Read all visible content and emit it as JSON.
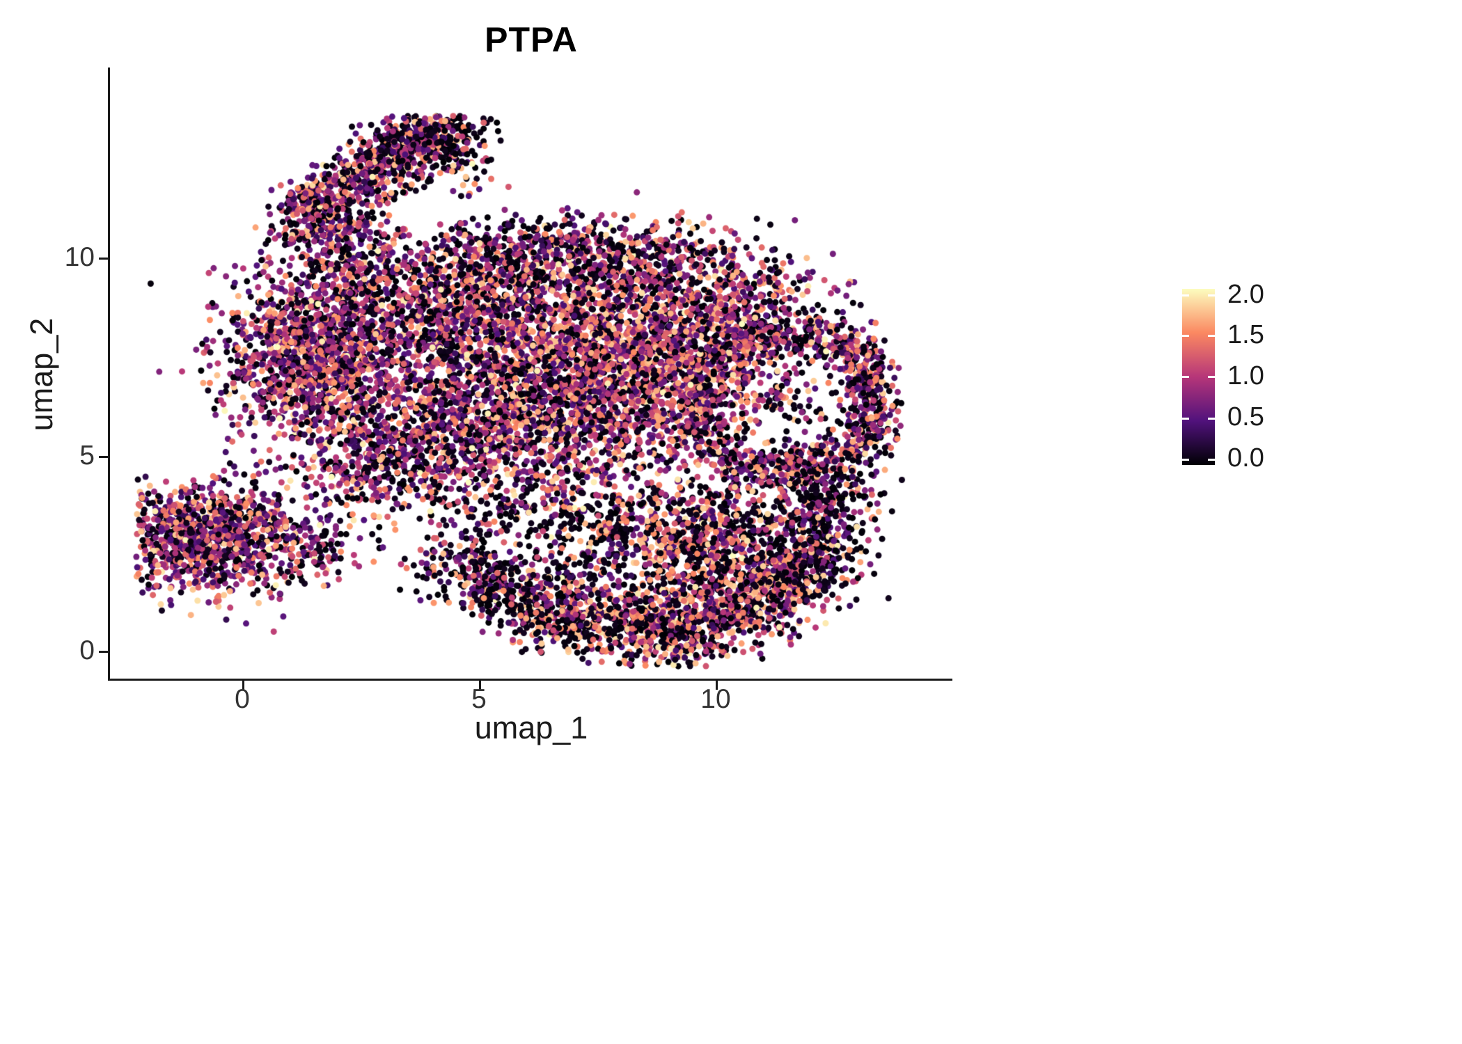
{
  "title": "PTPA",
  "axes": {
    "x_label": "umap_1",
    "y_label": "umap_2",
    "x_tick_labels": [
      "0",
      "5",
      "10"
    ],
    "y_tick_labels": [
      "10",
      "5",
      "0"
    ]
  },
  "legend": {
    "tick_labels": [
      "2.0",
      "1.5",
      "1.0",
      "0.5",
      "0.0"
    ]
  },
  "chart_data": {
    "type": "scatter",
    "title": "PTPA",
    "xlabel": "umap_1",
    "ylabel": "umap_2",
    "xlim": [
      -2.8,
      15.0
    ],
    "ylim": [
      -0.7,
      14.8
    ],
    "x_ticks": [
      0,
      5,
      10
    ],
    "y_ticks": [
      0,
      5,
      10
    ],
    "grid": false,
    "legend_position": "right",
    "point_radius_px": 4.5,
    "color_scale": {
      "palette": "magma",
      "domain": [
        0,
        2
      ],
      "legend_ticks": [
        2.0,
        1.5,
        1.0,
        0.5,
        0.0
      ],
      "stops": [
        {
          "t": 0.0,
          "color": "#000004"
        },
        {
          "t": 0.25,
          "color": "#51127C"
        },
        {
          "t": 0.5,
          "color": "#B63679"
        },
        {
          "t": 0.75,
          "color": "#FB8861"
        },
        {
          "t": 1.0,
          "color": "#FCFDBF"
        }
      ]
    },
    "value_bands": [
      [
        0,
        0.12
      ],
      [
        0.3,
        0.8
      ],
      [
        0.8,
        1.4
      ],
      [
        1.4,
        1.8
      ],
      [
        1.8,
        2.0
      ]
    ],
    "profiles": {
      "dark": [
        0.55,
        0.2,
        0.14,
        0.1,
        0.01
      ],
      "mixed": [
        0.36,
        0.27,
        0.23,
        0.12,
        0.02
      ],
      "mid": [
        0.26,
        0.3,
        0.29,
        0.13,
        0.02
      ],
      "hot": [
        0.24,
        0.2,
        0.3,
        0.23,
        0.03
      ],
      "hot-dark": [
        0.42,
        0.13,
        0.2,
        0.22,
        0.03
      ]
    },
    "clusters": [
      {
        "name": "left-island",
        "shape": "gauss",
        "cx": -1.05,
        "cy": 2.85,
        "sx": 0.78,
        "sy": 0.68,
        "n": 850,
        "profile": "mid"
      },
      {
        "name": "left-bridge",
        "shape": "gauss",
        "cx": 0.45,
        "cy": 3.1,
        "sx": 0.55,
        "sy": 0.75,
        "n": 200,
        "profile": "mixed"
      },
      {
        "name": "left-tail",
        "shape": "gauss",
        "cx": 1.4,
        "cy": 2.5,
        "sx": 0.55,
        "sy": 0.45,
        "n": 110,
        "profile": "mixed"
      },
      {
        "name": "top-arm",
        "shape": "line",
        "x1": 1.15,
        "y1": 10.9,
        "x2": 4.2,
        "y2": 13.35,
        "w": 0.42,
        "n": 850,
        "profile": "mixed"
      },
      {
        "name": "arm-tip",
        "shape": "gauss",
        "cx": 4.4,
        "cy": 12.9,
        "sx": 0.45,
        "sy": 0.5,
        "n": 200,
        "profile": "dark"
      },
      {
        "name": "arm-base",
        "shape": "gauss",
        "cx": 2.3,
        "cy": 10.1,
        "sx": 0.7,
        "sy": 0.55,
        "n": 260,
        "profile": "mixed"
      },
      {
        "name": "upper-left-dense",
        "shape": "gauss",
        "cx": 1.5,
        "cy": 7.5,
        "sx": 0.95,
        "sy": 1.05,
        "n": 1300,
        "profile": "mid"
      },
      {
        "name": "mid-top",
        "shape": "gauss",
        "cx": 4.3,
        "cy": 8.7,
        "sx": 1.5,
        "sy": 0.85,
        "n": 950,
        "profile": "mixed"
      },
      {
        "name": "top-edge",
        "shape": "line",
        "x1": 4.3,
        "y1": 9.95,
        "x2": 9.4,
        "y2": 10.0,
        "w": 0.5,
        "n": 650,
        "profile": "mixed"
      },
      {
        "name": "top-scatter",
        "shape": "gauss",
        "cx": 6.2,
        "cy": 10.5,
        "sx": 0.8,
        "sy": 0.35,
        "n": 40,
        "profile": "dark"
      },
      {
        "name": "center",
        "shape": "gauss",
        "cx": 5.2,
        "cy": 6.1,
        "sx": 1.5,
        "sy": 1.25,
        "n": 1350,
        "profile": "mixed"
      },
      {
        "name": "right-dense",
        "shape": "gauss",
        "cx": 8.2,
        "cy": 7.2,
        "sx": 1.55,
        "sy": 1.35,
        "n": 2300,
        "profile": "hot"
      },
      {
        "name": "right-upper",
        "shape": "gauss",
        "cx": 10.4,
        "cy": 8.7,
        "sx": 0.95,
        "sy": 0.75,
        "n": 480,
        "profile": "mixed"
      },
      {
        "name": "right-ring",
        "shape": "ring",
        "cx": 11.5,
        "cy": 6.3,
        "r": 1.9,
        "w": 0.75,
        "n": 800,
        "profile": "mixed"
      },
      {
        "name": "ring-interior",
        "shape": "gauss",
        "cx": 11.4,
        "cy": 6.2,
        "sx": 0.55,
        "sy": 0.5,
        "n": 55,
        "profile": "dark"
      },
      {
        "name": "far-right-edge",
        "shape": "line",
        "x1": 13.0,
        "y1": 8.0,
        "x2": 13.35,
        "y2": 5.3,
        "w": 0.3,
        "n": 200,
        "profile": "mixed"
      },
      {
        "name": "bottom-arc-1",
        "shape": "line",
        "x1": 4.3,
        "y1": 2.3,
        "x2": 6.6,
        "y2": 1.0,
        "w": 0.5,
        "n": 430,
        "profile": "dark"
      },
      {
        "name": "bottom-arc-2",
        "shape": "line",
        "x1": 6.6,
        "y1": 1.0,
        "x2": 9.3,
        "y2": 0.45,
        "w": 0.55,
        "n": 620,
        "profile": "hot-dark"
      },
      {
        "name": "bottom-arc-3",
        "shape": "line",
        "x1": 9.3,
        "y1": 0.5,
        "x2": 11.4,
        "y2": 1.7,
        "w": 0.6,
        "n": 620,
        "profile": "hot-dark"
      },
      {
        "name": "bottom-arc-4",
        "shape": "line",
        "x1": 11.4,
        "y1": 1.7,
        "x2": 12.7,
        "y2": 3.5,
        "w": 0.5,
        "n": 430,
        "profile": "dark"
      },
      {
        "name": "bottom-right-fill",
        "shape": "gauss",
        "cx": 9.8,
        "cy": 2.7,
        "sx": 1.15,
        "sy": 0.85,
        "n": 780,
        "profile": "hot-dark"
      },
      {
        "name": "mid-bottom-sparse",
        "shape": "gauss",
        "cx": 6.9,
        "cy": 3.3,
        "sx": 1.5,
        "sy": 0.85,
        "n": 380,
        "profile": "dark"
      },
      {
        "name": "left-mid",
        "shape": "gauss",
        "cx": 3.0,
        "cy": 4.9,
        "sx": 1.1,
        "sy": 0.9,
        "n": 430,
        "profile": "mixed"
      },
      {
        "name": "right-bottom-join",
        "shape": "gauss",
        "cx": 12.2,
        "cy": 4.3,
        "sx": 0.6,
        "sy": 0.6,
        "n": 230,
        "profile": "dark"
      }
    ]
  }
}
